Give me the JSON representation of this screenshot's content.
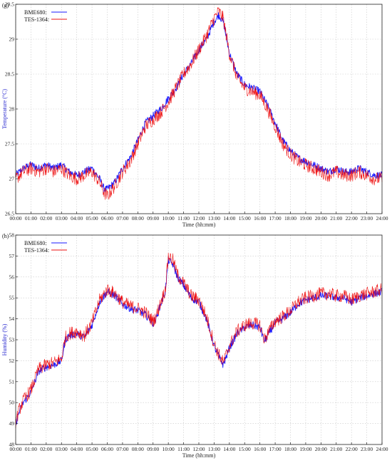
{
  "chart_data": [
    {
      "type": "line",
      "panel_label": "(g)",
      "xlabel": "Time (hh:mm)",
      "ylabel": "Temperature (°C)",
      "x_ticks": [
        "00:00",
        "01:00",
        "02:00",
        "03:00",
        "04:00",
        "05:00",
        "06:00",
        "07:00",
        "08:00",
        "09:00",
        "10:00",
        "11:00",
        "12:00",
        "13:00",
        "14:00",
        "15:00",
        "16:00",
        "17:00",
        "18:00",
        "19:00",
        "20:00",
        "21:00",
        "22:00",
        "23:00",
        "24:00"
      ],
      "y_ticks": [
        "26.5",
        "27",
        "27.5",
        "28",
        "28.5",
        "29",
        "29.5"
      ],
      "xlim_hours": [
        0,
        24
      ],
      "ylim": [
        26.5,
        29.5
      ],
      "grid": true,
      "legend_position": "top-left",
      "series": [
        {
          "name": "BME680:",
          "color": "#1a1aff",
          "hours": [
            0,
            0.5,
            1,
            1.5,
            2,
            2.5,
            3,
            3.5,
            4,
            4.5,
            5,
            5.5,
            5.8,
            6,
            6.5,
            7,
            7.5,
            8,
            8.5,
            9,
            9.5,
            10,
            10.5,
            11,
            11.5,
            12,
            12.5,
            13,
            13.3,
            13.6,
            14,
            14.5,
            15,
            15.5,
            16,
            16.5,
            17,
            17.5,
            18,
            18.5,
            19,
            19.5,
            20,
            20.5,
            21,
            21.5,
            22,
            22.5,
            23,
            23.5,
            24
          ],
          "values": [
            27.05,
            27.15,
            27.2,
            27.15,
            27.2,
            27.15,
            27.2,
            27.1,
            27.05,
            27.1,
            27.15,
            27.0,
            26.85,
            26.85,
            26.95,
            27.15,
            27.3,
            27.55,
            27.8,
            27.9,
            28.0,
            28.15,
            28.3,
            28.5,
            28.65,
            28.85,
            29.0,
            29.25,
            29.35,
            29.25,
            28.8,
            28.5,
            28.35,
            28.3,
            28.25,
            28.05,
            27.8,
            27.55,
            27.4,
            27.3,
            27.25,
            27.2,
            27.15,
            27.1,
            27.15,
            27.1,
            27.1,
            27.15,
            27.1,
            27.05,
            27.05
          ]
        },
        {
          "name": "TES-1364:",
          "color": "#ee1111",
          "hours": [
            0,
            0.5,
            1,
            1.5,
            2,
            2.5,
            3,
            3.5,
            4,
            4.5,
            5,
            5.5,
            5.8,
            6,
            6.5,
            7,
            7.5,
            8,
            8.5,
            9,
            9.5,
            10,
            10.5,
            11,
            11.5,
            12,
            12.5,
            13,
            13.3,
            13.6,
            14,
            14.5,
            15,
            15.5,
            16,
            16.5,
            17,
            17.5,
            18,
            18.5,
            19,
            19.5,
            20,
            20.5,
            21,
            21.5,
            22,
            22.5,
            23,
            23.5,
            24
          ],
          "values": [
            27.0,
            27.1,
            27.15,
            27.1,
            27.15,
            27.1,
            27.15,
            27.05,
            27.0,
            27.05,
            27.1,
            26.95,
            26.8,
            26.75,
            26.9,
            27.1,
            27.25,
            27.5,
            27.75,
            27.85,
            27.95,
            28.1,
            28.3,
            28.5,
            28.65,
            28.85,
            29.05,
            29.3,
            29.4,
            29.3,
            28.8,
            28.45,
            28.3,
            28.25,
            28.2,
            28.0,
            27.75,
            27.5,
            27.35,
            27.25,
            27.2,
            27.15,
            27.1,
            27.05,
            27.1,
            27.05,
            27.05,
            27.1,
            27.05,
            27.0,
            27.0
          ]
        }
      ]
    },
    {
      "type": "line",
      "panel_label": "(h)",
      "xlabel": "Time (hh:mm)",
      "ylabel": "Humidity (%)",
      "x_ticks": [
        "00:00",
        "01:00",
        "02:00",
        "03:00",
        "04:00",
        "05:00",
        "06:00",
        "07:00",
        "08:00",
        "09:00",
        "10:00",
        "11:00",
        "12:00",
        "13:00",
        "14:00",
        "15:00",
        "16:00",
        "17:00",
        "18:00",
        "19:00",
        "20:00",
        "21:00",
        "22:00",
        "23:00",
        "24:00"
      ],
      "y_ticks": [
        "48",
        "49",
        "50",
        "51",
        "52",
        "53",
        "54",
        "55",
        "56",
        "57",
        "58"
      ],
      "xlim_hours": [
        0,
        24
      ],
      "ylim": [
        48,
        58
      ],
      "grid": true,
      "legend_position": "top-left",
      "series": [
        {
          "name": "BME680:",
          "color": "#1a1aff",
          "hours": [
            0,
            0.25,
            0.5,
            1,
            1.5,
            2,
            2.5,
            3,
            3.25,
            3.5,
            4,
            4.5,
            5,
            5.5,
            6,
            6.5,
            7,
            7.5,
            8,
            8.5,
            9,
            9.2,
            9.5,
            9.8,
            10,
            10.3,
            10.6,
            11,
            11.5,
            12,
            12.5,
            13,
            13.3,
            13.6,
            14,
            14.5,
            15,
            15.5,
            16,
            16.3,
            16.5,
            17,
            17.5,
            18,
            18.5,
            19,
            19.5,
            20,
            20.5,
            21,
            21.5,
            22,
            22.5,
            23,
            23.5,
            24
          ],
          "values": [
            49.0,
            49.6,
            50.0,
            50.5,
            51.5,
            51.7,
            51.8,
            52.0,
            53.0,
            53.2,
            53.3,
            53.1,
            53.7,
            54.8,
            55.3,
            55.1,
            54.7,
            54.5,
            54.4,
            54.2,
            53.8,
            54.0,
            54.7,
            55.3,
            56.8,
            56.6,
            56.0,
            55.6,
            55.0,
            54.8,
            54.0,
            52.7,
            52.2,
            51.8,
            52.6,
            53.3,
            53.6,
            53.7,
            53.6,
            52.9,
            53.2,
            53.8,
            54.0,
            54.3,
            54.7,
            54.9,
            55.0,
            55.1,
            55.1,
            55.0,
            55.0,
            54.8,
            55.0,
            55.1,
            55.2,
            55.3
          ]
        },
        {
          "name": "TES-1364:",
          "color": "#ee1111",
          "hours": [
            0,
            0.25,
            0.5,
            1,
            1.5,
            2,
            2.5,
            3,
            3.25,
            3.5,
            4,
            4.5,
            5,
            5.5,
            6,
            6.5,
            7,
            7.5,
            8,
            8.5,
            9,
            9.2,
            9.5,
            9.8,
            10,
            10.3,
            10.6,
            11,
            11.5,
            12,
            12.5,
            13,
            13.3,
            13.6,
            14,
            14.5,
            15,
            15.5,
            16,
            16.3,
            16.5,
            17,
            17.5,
            18,
            18.5,
            19,
            19.5,
            20,
            20.5,
            21,
            21.5,
            22,
            22.5,
            23,
            23.5,
            24
          ],
          "values": [
            49.1,
            49.7,
            50.1,
            50.6,
            51.6,
            51.8,
            51.9,
            52.1,
            53.1,
            53.3,
            53.4,
            53.2,
            53.8,
            54.9,
            55.4,
            55.2,
            54.8,
            54.6,
            54.5,
            54.3,
            53.9,
            54.1,
            54.8,
            55.4,
            57.0,
            56.8,
            56.1,
            55.7,
            55.1,
            54.9,
            54.1,
            52.8,
            52.3,
            51.9,
            52.7,
            53.4,
            53.7,
            53.8,
            53.7,
            53.0,
            53.3,
            53.9,
            54.1,
            54.4,
            54.8,
            55.0,
            55.1,
            55.2,
            55.2,
            55.1,
            55.1,
            54.9,
            55.1,
            55.2,
            55.3,
            55.4
          ]
        }
      ]
    }
  ]
}
